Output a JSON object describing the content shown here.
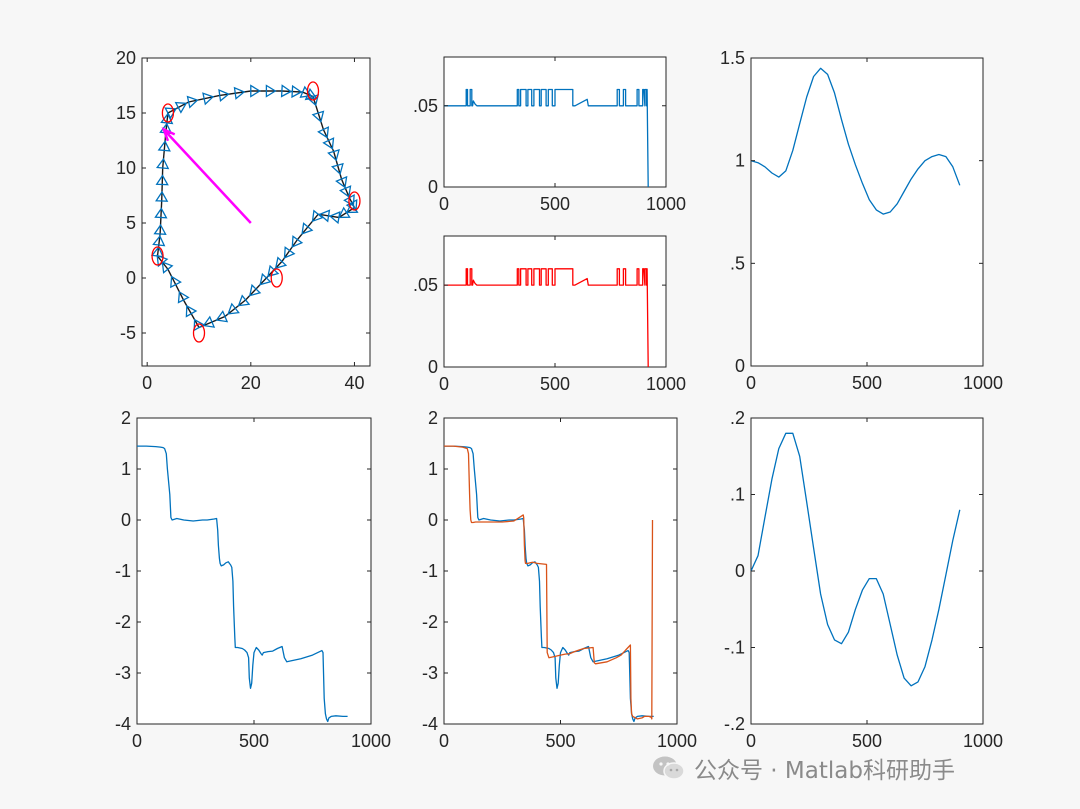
{
  "watermark": {
    "text": "公众号 · Matlab科研助手",
    "icon": "wechat-icon"
  },
  "colors": {
    "blue": "#0072bd",
    "orange": "#d95319",
    "pure_blue": "#0000ff",
    "red": "#ff0000",
    "magenta": "#ff00ff",
    "black": "#000000"
  },
  "chart_data": [
    {
      "id": "trajectory",
      "type": "scatter",
      "xlim": [
        -1,
        43
      ],
      "ylim": [
        -8,
        20
      ],
      "xticks": [
        0,
        20,
        40
      ],
      "yticks": [
        -5,
        0,
        5,
        10,
        15,
        20
      ],
      "waypoints": [
        [
          4,
          15
        ],
        [
          32,
          17
        ],
        [
          40,
          7
        ],
        [
          25,
          0
        ],
        [
          10,
          -5
        ],
        [
          2,
          2
        ]
      ],
      "robot_path": [
        [
          4,
          15
        ],
        [
          8,
          16
        ],
        [
          14,
          16.6
        ],
        [
          20,
          17
        ],
        [
          26,
          17
        ],
        [
          30,
          16.9
        ],
        [
          32,
          16.5
        ],
        [
          34,
          13.5
        ],
        [
          36,
          11.5
        ],
        [
          37.5,
          9
        ],
        [
          39,
          7.3
        ],
        [
          40,
          6.4
        ],
        [
          37,
          5.5
        ],
        [
          33,
          5.8
        ],
        [
          29,
          3.5
        ],
        [
          26,
          1.5
        ],
        [
          23,
          0
        ],
        [
          19,
          -2
        ],
        [
          15,
          -3.5
        ],
        [
          10,
          -4.5
        ],
        [
          7,
          -2
        ],
        [
          4,
          0.8
        ],
        [
          2,
          2
        ],
        [
          2.5,
          4
        ],
        [
          2.8,
          7
        ],
        [
          3,
          10
        ],
        [
          3.6,
          13.2
        ],
        [
          4,
          15
        ]
      ],
      "start_arrow": {
        "from": [
          20,
          5
        ],
        "to": [
          3.2,
          13.5
        ]
      }
    },
    {
      "id": "signal-blue",
      "type": "line",
      "xlim": [
        0,
        1000
      ],
      "ylim": [
        0,
        0.08
      ],
      "xticks": [
        0,
        500,
        1000
      ],
      "yticks": [
        0,
        0.05
      ],
      "series": [
        {
          "color": "blue",
          "x": [
            0,
            100,
            100,
            106,
            106,
            118,
            118,
            125,
            125,
            129,
            132,
            140,
            148,
            150,
            330,
            330,
            337,
            337,
            345,
            345,
            370,
            370,
            378,
            378,
            395,
            395,
            405,
            405,
            430,
            430,
            438,
            438,
            460,
            460,
            470,
            470,
            488,
            488,
            500,
            500,
            580,
            580,
            590,
            590,
            645,
            650,
            655,
            660,
            780,
            780,
            790,
            790,
            808,
            808,
            818,
            818,
            870,
            870,
            878,
            878,
            895,
            895,
            900,
            905,
            905,
            912,
            912,
            915,
            915,
            920
          ],
          "y": [
            0.05,
            0.05,
            0.06,
            0.06,
            0.05,
            0.05,
            0.06,
            0.06,
            0.05,
            0.05,
            0.053,
            0.051,
            0.05,
            0.05,
            0.05,
            0.06,
            0.06,
            0.05,
            0.05,
            0.06,
            0.06,
            0.05,
            0.05,
            0.06,
            0.06,
            0.05,
            0.05,
            0.06,
            0.06,
            0.05,
            0.05,
            0.06,
            0.06,
            0.05,
            0.05,
            0.06,
            0.06,
            0.05,
            0.05,
            0.06,
            0.06,
            0.05,
            0.05,
            0.05,
            0.054,
            0.05,
            0.05,
            0.05,
            0.05,
            0.06,
            0.06,
            0.05,
            0.05,
            0.06,
            0.06,
            0.05,
            0.05,
            0.06,
            0.06,
            0.05,
            0.05,
            0.06,
            0.06,
            0.05,
            0.06,
            0.06,
            0.05,
            0.05,
            0.06,
            0
          ]
        }
      ]
    },
    {
      "id": "signal-red",
      "type": "line",
      "xlim": [
        0,
        1000
      ],
      "ylim": [
        0,
        0.08
      ],
      "xticks": [
        0,
        500,
        1000
      ],
      "yticks": [
        0,
        0.05
      ],
      "series": [
        {
          "color": "red",
          "x": [
            0,
            100,
            100,
            106,
            106,
            118,
            118,
            125,
            125,
            129,
            132,
            140,
            148,
            150,
            330,
            330,
            337,
            337,
            345,
            345,
            370,
            370,
            378,
            378,
            395,
            395,
            405,
            405,
            430,
            430,
            438,
            438,
            460,
            460,
            470,
            470,
            488,
            488,
            500,
            500,
            580,
            580,
            590,
            590,
            645,
            650,
            655,
            660,
            780,
            780,
            790,
            790,
            808,
            808,
            818,
            818,
            870,
            870,
            878,
            878,
            895,
            895,
            900,
            905,
            905,
            912,
            912,
            915,
            915,
            920
          ],
          "y": [
            0.05,
            0.05,
            0.06,
            0.06,
            0.05,
            0.05,
            0.06,
            0.06,
            0.05,
            0.05,
            0.053,
            0.051,
            0.05,
            0.05,
            0.05,
            0.06,
            0.06,
            0.05,
            0.05,
            0.06,
            0.06,
            0.05,
            0.05,
            0.06,
            0.06,
            0.05,
            0.05,
            0.06,
            0.06,
            0.05,
            0.05,
            0.06,
            0.06,
            0.05,
            0.05,
            0.06,
            0.06,
            0.05,
            0.05,
            0.06,
            0.06,
            0.05,
            0.05,
            0.05,
            0.054,
            0.05,
            0.05,
            0.05,
            0.05,
            0.06,
            0.06,
            0.05,
            0.05,
            0.06,
            0.06,
            0.05,
            0.05,
            0.06,
            0.06,
            0.05,
            0.05,
            0.06,
            0.06,
            0.05,
            0.06,
            0.06,
            0.05,
            0.05,
            0.06,
            0
          ]
        }
      ]
    },
    {
      "id": "wave-top-right",
      "type": "line",
      "xlim": [
        0,
        1000
      ],
      "ylim": [
        0,
        1.5
      ],
      "xticks": [
        0,
        500,
        1000
      ],
      "yticks": [
        0,
        0.5,
        1,
        1.5
      ],
      "series": [
        {
          "color": "blue",
          "x": [
            0,
            30,
            60,
            90,
            120,
            150,
            180,
            210,
            240,
            270,
            300,
            330,
            360,
            390,
            420,
            450,
            480,
            510,
            540,
            570,
            600,
            630,
            660,
            690,
            720,
            750,
            780,
            810,
            840,
            870,
            900
          ],
          "y": [
            1.0,
            0.99,
            0.97,
            0.94,
            0.92,
            0.95,
            1.05,
            1.18,
            1.31,
            1.41,
            1.45,
            1.42,
            1.33,
            1.2,
            1.08,
            0.98,
            0.89,
            0.81,
            0.76,
            0.74,
            0.75,
            0.79,
            0.85,
            0.91,
            0.96,
            1.0,
            1.02,
            1.03,
            1.02,
            0.97,
            0.88
          ]
        }
      ]
    },
    {
      "id": "steps-single",
      "type": "line",
      "xlim": [
        0,
        1000
      ],
      "ylim": [
        -4,
        2
      ],
      "xticks": [
        0,
        500,
        1000
      ],
      "yticks": [
        -4,
        -3,
        -2,
        -1,
        0,
        1,
        2
      ],
      "series": [
        {
          "color": "blue",
          "x": [
            0,
            40,
            80,
            100,
            112,
            118,
            125,
            130,
            140,
            145,
            150,
            170,
            200,
            240,
            280,
            300,
            330,
            340,
            345,
            348,
            352,
            355,
            360,
            370,
            380,
            390,
            395,
            400,
            405,
            410,
            413,
            418,
            420,
            430,
            450,
            460,
            470,
            477,
            480,
            485,
            490,
            495,
            500,
            510,
            520,
            530,
            535,
            540,
            560,
            580,
            600,
            620,
            630,
            640,
            650,
            660,
            700,
            750,
            790,
            795,
            800,
            805,
            810,
            815,
            820,
            830,
            850,
            880,
            900
          ],
          "y": [
            1.45,
            1.45,
            1.44,
            1.43,
            1.42,
            1.4,
            1.3,
            1.0,
            0.5,
            0.05,
            0.0,
            0.03,
            0.0,
            -0.02,
            0.0,
            0.0,
            0.02,
            0.03,
            -0.2,
            -0.5,
            -0.75,
            -0.85,
            -0.9,
            -0.88,
            -0.84,
            -0.82,
            -0.85,
            -0.88,
            -0.93,
            -1.2,
            -1.7,
            -2.3,
            -2.5,
            -2.5,
            -2.52,
            -2.55,
            -2.6,
            -2.7,
            -3.1,
            -3.3,
            -3.2,
            -2.85,
            -2.6,
            -2.5,
            -2.55,
            -2.62,
            -2.65,
            -2.6,
            -2.58,
            -2.57,
            -2.52,
            -2.48,
            -2.7,
            -2.78,
            -2.77,
            -2.76,
            -2.72,
            -2.65,
            -2.56,
            -2.6,
            -3.5,
            -3.8,
            -3.9,
            -3.95,
            -3.88,
            -3.85,
            -3.84,
            -3.85,
            -3.85
          ]
        }
      ]
    },
    {
      "id": "steps-compare",
      "type": "line",
      "xlim": [
        0,
        1000
      ],
      "ylim": [
        -4,
        2
      ],
      "xticks": [
        0,
        500,
        1000
      ],
      "yticks": [
        -4,
        -3,
        -2,
        -1,
        0,
        1,
        2
      ],
      "series": [
        {
          "color": "blue",
          "x": [
            0,
            40,
            80,
            100,
            112,
            118,
            125,
            130,
            140,
            145,
            150,
            170,
            200,
            240,
            280,
            300,
            330,
            340,
            345,
            348,
            352,
            355,
            360,
            370,
            380,
            390,
            395,
            400,
            405,
            410,
            413,
            418,
            420,
            430,
            450,
            460,
            470,
            477,
            480,
            485,
            490,
            495,
            500,
            510,
            520,
            530,
            535,
            540,
            560,
            580,
            600,
            620,
            630,
            640,
            650,
            660,
            700,
            750,
            790,
            795,
            800,
            805,
            810,
            815,
            820,
            830,
            850,
            880,
            900
          ],
          "y": [
            1.45,
            1.45,
            1.44,
            1.43,
            1.42,
            1.4,
            1.3,
            1.0,
            0.5,
            0.05,
            0.0,
            0.03,
            0.0,
            -0.02,
            0.0,
            0.0,
            0.02,
            0.03,
            -0.2,
            -0.5,
            -0.75,
            -0.85,
            -0.9,
            -0.88,
            -0.84,
            -0.82,
            -0.85,
            -0.88,
            -0.93,
            -1.2,
            -1.7,
            -2.3,
            -2.5,
            -2.5,
            -2.52,
            -2.55,
            -2.6,
            -2.7,
            -3.1,
            -3.3,
            -3.2,
            -2.85,
            -2.6,
            -2.5,
            -2.55,
            -2.62,
            -2.65,
            -2.6,
            -2.58,
            -2.57,
            -2.52,
            -2.48,
            -2.7,
            -2.78,
            -2.77,
            -2.76,
            -2.72,
            -2.65,
            -2.56,
            -2.6,
            -3.5,
            -3.8,
            -3.9,
            -3.95,
            -3.88,
            -3.85,
            -3.84,
            -3.85,
            -3.85
          ]
        },
        {
          "color": "orange",
          "x": [
            0,
            40,
            80,
            100,
            105,
            110,
            112,
            115,
            118,
            125,
            135,
            150,
            200,
            250,
            300,
            340,
            342,
            345,
            348,
            350,
            360,
            370,
            380,
            390,
            400,
            440,
            443,
            450,
            470,
            500,
            520,
            540,
            560,
            580,
            600,
            640,
            645,
            650,
            700,
            740,
            760,
            770,
            780,
            800,
            802,
            805,
            810,
            830,
            850,
            860,
            880,
            890,
            892,
            895
          ],
          "y": [
            1.45,
            1.45,
            1.43,
            1.4,
            1.3,
            0.5,
            0.2,
            0.0,
            -0.05,
            -0.05,
            -0.04,
            -0.04,
            -0.04,
            -0.04,
            -0.02,
            0.1,
            0.05,
            -0.5,
            -0.8,
            -0.85,
            -0.85,
            -0.84,
            -0.83,
            -0.84,
            -0.85,
            -0.87,
            -2.6,
            -2.7,
            -2.68,
            -2.65,
            -2.63,
            -2.62,
            -2.58,
            -2.55,
            -2.52,
            -2.5,
            -2.8,
            -2.82,
            -2.78,
            -2.7,
            -2.65,
            -2.6,
            -2.55,
            -2.45,
            -3.5,
            -3.8,
            -3.85,
            -3.9,
            -3.88,
            -3.85,
            -3.85,
            -3.87,
            -3.9,
            0.0
          ]
        }
      ]
    },
    {
      "id": "wave-bottom-right",
      "type": "line",
      "xlim": [
        0,
        1000
      ],
      "ylim": [
        -0.2,
        0.2
      ],
      "xticks": [
        0,
        500,
        1000
      ],
      "yticks": [
        -0.2,
        -0.1,
        0,
        0.1,
        0.2
      ],
      "series": [
        {
          "color": "blue",
          "x": [
            0,
            30,
            60,
            90,
            120,
            150,
            180,
            210,
            240,
            270,
            300,
            330,
            360,
            390,
            420,
            450,
            480,
            510,
            540,
            570,
            600,
            630,
            660,
            690,
            720,
            750,
            780,
            810,
            840,
            870,
            900
          ],
          "y": [
            0.0,
            0.02,
            0.07,
            0.12,
            0.16,
            0.18,
            0.18,
            0.15,
            0.09,
            0.03,
            -0.03,
            -0.07,
            -0.09,
            -0.095,
            -0.08,
            -0.05,
            -0.025,
            -0.01,
            -0.01,
            -0.03,
            -0.07,
            -0.11,
            -0.14,
            -0.15,
            -0.145,
            -0.125,
            -0.09,
            -0.05,
            -0.005,
            0.04,
            0.08
          ]
        }
      ]
    }
  ]
}
